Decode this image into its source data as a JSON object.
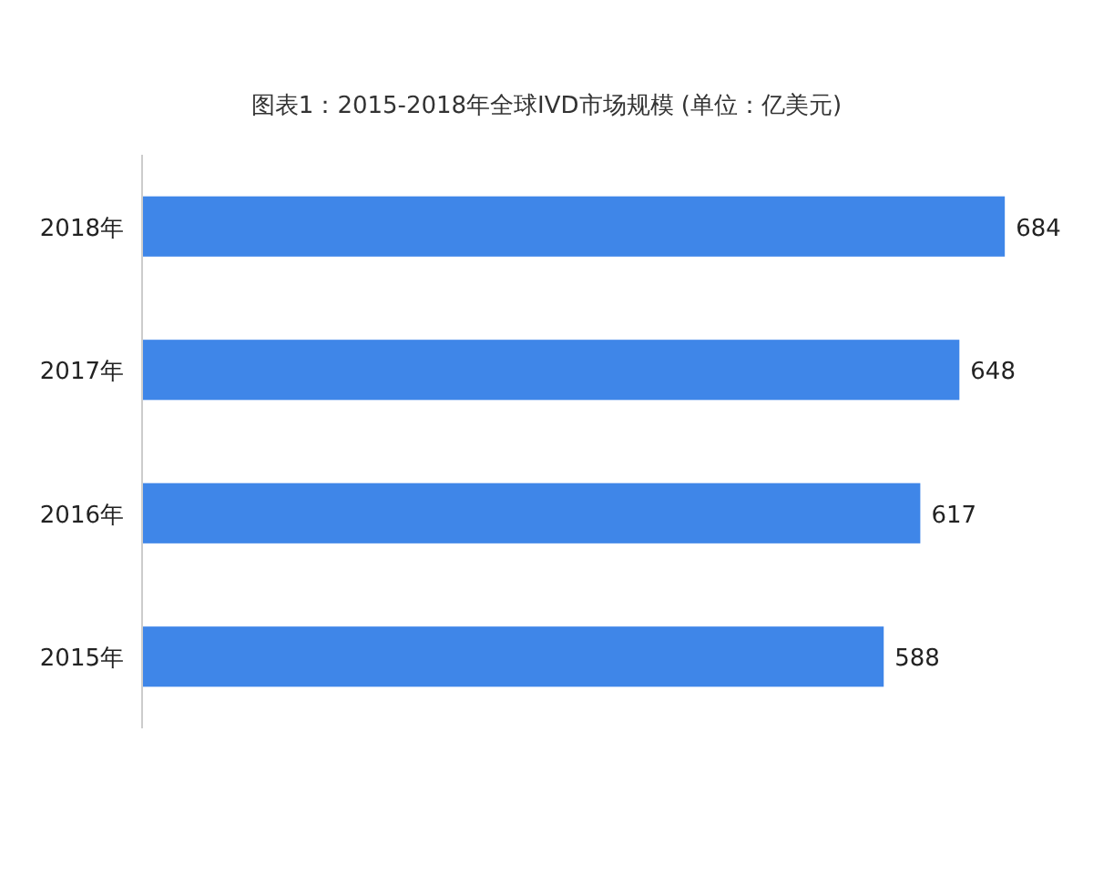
{
  "chart_data": {
    "type": "bar",
    "orientation": "horizontal",
    "title": "图表1：2015-2018年全球IVD市场规模 (单位：亿美元)",
    "categories": [
      "2018年",
      "2017年",
      "2016年",
      "2015年"
    ],
    "values": [
      684,
      648,
      617,
      588
    ],
    "color": "#3f86e8",
    "tick_labels": "y",
    "data_labels": true
  }
}
